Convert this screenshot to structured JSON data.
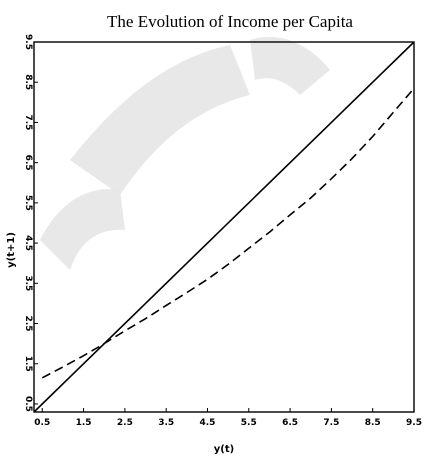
{
  "chart_data": {
    "type": "line",
    "title": "The Evolution of Income per Capita",
    "xlabel": "y(t)",
    "ylabel": "y(t+1)",
    "xlim": [
      0.3,
      9.5
    ],
    "ylim": [
      0.3,
      9.5
    ],
    "x_ticks": [
      0.5,
      1.5,
      2.5,
      3.5,
      4.5,
      5.5,
      6.5,
      7.5,
      8.5,
      9.5
    ],
    "x_tick_labels": [
      "0.5",
      "1.5",
      "2.5",
      "3.5",
      "4.5",
      "5.5",
      "6.5",
      "7.5",
      "8.5",
      "9.5"
    ],
    "y_ticks": [
      0.5,
      1.5,
      2.5,
      3.5,
      4.5,
      5.5,
      6.5,
      7.5,
      8.5,
      9.5
    ],
    "y_tick_labels": [
      "0.5",
      "1.5",
      "2.5",
      "3.5",
      "4.5",
      "5.5",
      "6.5",
      "7.5",
      "8.5",
      "9.5"
    ],
    "grid": false,
    "series": [
      {
        "style": "solid",
        "color": "#000000",
        "x": [
          0.3,
          9.5
        ],
        "y": [
          0.3,
          9.5
        ]
      },
      {
        "style": "dashed",
        "color": "#000000",
        "x": [
          0.5,
          1.0,
          1.5,
          2.0,
          2.5,
          3.0,
          3.5,
          4.0,
          4.5,
          5.0,
          5.5,
          6.0,
          6.5,
          7.0,
          7.5,
          8.0,
          8.5,
          9.0,
          9.5
        ],
        "y": [
          1.15,
          1.42,
          1.7,
          2.0,
          2.32,
          2.62,
          2.95,
          3.27,
          3.6,
          3.97,
          4.37,
          4.77,
          5.2,
          5.62,
          6.1,
          6.6,
          7.15,
          7.75,
          8.35
        ]
      }
    ]
  }
}
